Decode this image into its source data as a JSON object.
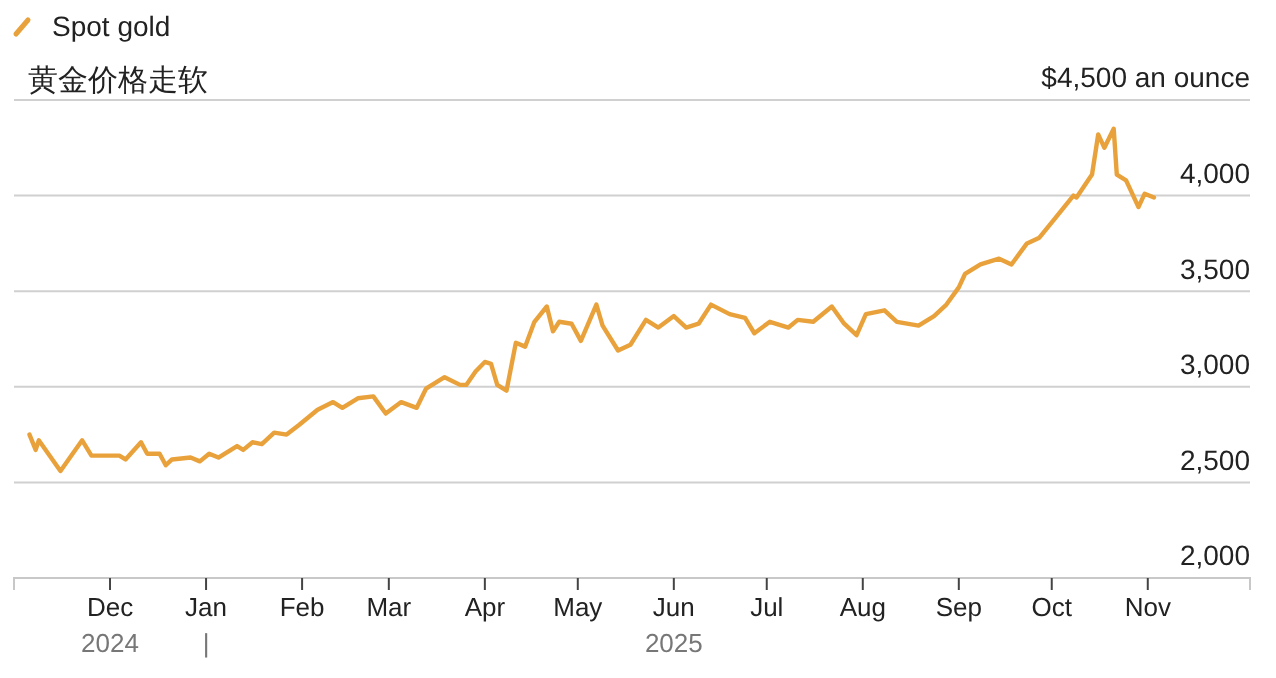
{
  "chart_data": {
    "type": "line",
    "title": "黄金价格走软",
    "legend": "top left",
    "grid": "y",
    "xlim": [
      "2024-10-31",
      "2025-12-04"
    ],
    "ylim": [
      2000,
      4500
    ],
    "xticks": [
      {
        "value": "2024-12-01",
        "label": "Dec"
      },
      {
        "value": "2025-01-01",
        "label": "Jan"
      },
      {
        "value": "2025-02-01",
        "label": "Feb"
      },
      {
        "value": "2025-03-01",
        "label": "Mar"
      },
      {
        "value": "2025-04-01",
        "label": "Apr"
      },
      {
        "value": "2025-05-01",
        "label": "May"
      },
      {
        "value": "2025-06-01",
        "label": "Jun"
      },
      {
        "value": "2025-07-01",
        "label": "Jul"
      },
      {
        "value": "2025-08-01",
        "label": "Aug"
      },
      {
        "value": "2025-09-01",
        "label": "Sep"
      },
      {
        "value": "2025-10-01",
        "label": "Oct"
      },
      {
        "value": "2025-11-01",
        "label": "Nov"
      }
    ],
    "yticks": [
      {
        "value": 2000,
        "label": "2,000"
      },
      {
        "value": 2500,
        "label": "2,500"
      },
      {
        "value": 3000,
        "label": "3,000"
      },
      {
        "value": 3500,
        "label": "3,500"
      },
      {
        "value": 4000,
        "label": "4,000"
      },
      {
        "value": 4500,
        "label": "$4,500 an ounce"
      }
    ],
    "annotations": [
      "2024",
      "|",
      "2025"
    ],
    "series": [
      {
        "name": "Spot gold",
        "color": "#e9a23b",
        "x": [
          "2024-11-05",
          "2024-11-07",
          "2024-11-08",
          "2024-11-15",
          "2024-11-22",
          "2024-11-25",
          "2024-12-04",
          "2024-12-06",
          "2024-12-11",
          "2024-12-13",
          "2024-12-17",
          "2024-12-19",
          "2024-12-21",
          "2024-12-27",
          "2024-12-30",
          "2025-01-02",
          "2025-01-05",
          "2025-01-11",
          "2025-01-13",
          "2025-01-16",
          "2025-01-19",
          "2025-01-23",
          "2025-01-27",
          "2025-01-31",
          "2025-02-06",
          "2025-02-11",
          "2025-02-14",
          "2025-02-19",
          "2025-02-24",
          "2025-02-28",
          "2025-03-05",
          "2025-03-10",
          "2025-03-13",
          "2025-03-19",
          "2025-03-24",
          "2025-03-26",
          "2025-03-29",
          "2025-04-01",
          "2025-04-03",
          "2025-04-05",
          "2025-04-08",
          "2025-04-11",
          "2025-04-14",
          "2025-04-17",
          "2025-04-21",
          "2025-04-23",
          "2025-04-25",
          "2025-04-29",
          "2025-05-02",
          "2025-05-07",
          "2025-05-09",
          "2025-05-14",
          "2025-05-18",
          "2025-05-23",
          "2025-05-27",
          "2025-06-01",
          "2025-06-05",
          "2025-06-09",
          "2025-06-13",
          "2025-06-19",
          "2025-06-24",
          "2025-06-27",
          "2025-07-02",
          "2025-07-08",
          "2025-07-11",
          "2025-07-16",
          "2025-07-22",
          "2025-07-26",
          "2025-07-30",
          "2025-08-02",
          "2025-08-08",
          "2025-08-12",
          "2025-08-19",
          "2025-08-24",
          "2025-08-28",
          "2025-09-01",
          "2025-09-03",
          "2025-09-08",
          "2025-09-14",
          "2025-09-18",
          "2025-09-23",
          "2025-09-27",
          "2025-10-02",
          "2025-10-08",
          "2025-10-09",
          "2025-10-14",
          "2025-10-16",
          "2025-10-18",
          "2025-10-21",
          "2025-10-22",
          "2025-10-25",
          "2025-10-29",
          "2025-10-31",
          "2025-11-03"
        ],
        "values": [
          2750,
          2670,
          2720,
          2560,
          2720,
          2640,
          2640,
          2620,
          2710,
          2650,
          2650,
          2590,
          2620,
          2630,
          2610,
          2650,
          2630,
          2690,
          2670,
          2710,
          2700,
          2760,
          2750,
          2800,
          2880,
          2920,
          2890,
          2940,
          2950,
          2860,
          2920,
          2890,
          2990,
          3050,
          3010,
          3010,
          3080,
          3130,
          3120,
          3010,
          2980,
          3230,
          3210,
          3340,
          3420,
          3290,
          3340,
          3330,
          3240,
          3430,
          3320,
          3190,
          3220,
          3350,
          3310,
          3370,
          3310,
          3330,
          3430,
          3380,
          3360,
          3280,
          3340,
          3310,
          3350,
          3340,
          3420,
          3330,
          3270,
          3380,
          3400,
          3340,
          3320,
          3370,
          3430,
          3520,
          3590,
          3640,
          3670,
          3640,
          3750,
          3780,
          3880,
          4000,
          3990,
          4110,
          4320,
          4250,
          4350,
          4110,
          4080,
          3940,
          4010,
          3990
        ]
      }
    ]
  }
}
